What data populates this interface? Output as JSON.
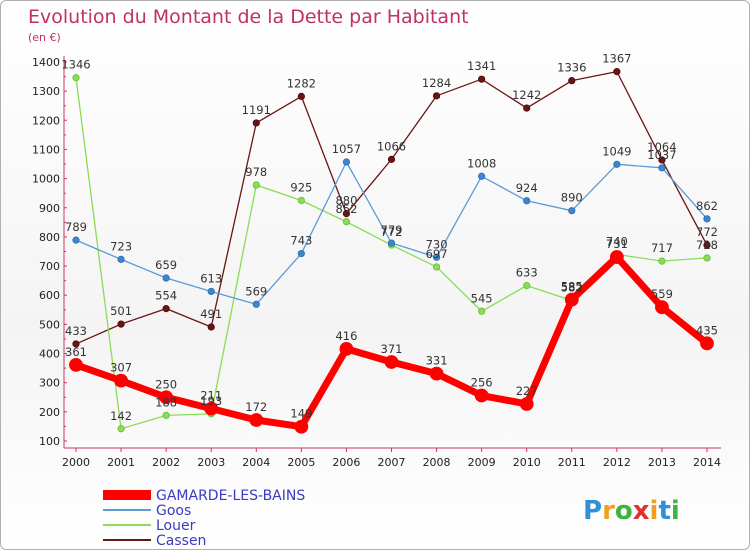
{
  "chart_data": {
    "type": "line",
    "title": "Evolution du Montant de la Dette par Habitant",
    "subtitle": "(en €)",
    "x": [
      "2000",
      "2001",
      "2002",
      "2003",
      "2004",
      "2005",
      "2006",
      "2007",
      "2008",
      "2009",
      "2010",
      "2011",
      "2012",
      "2013",
      "2014"
    ],
    "ylim": [
      100,
      1400
    ],
    "yticks": [
      100,
      200,
      300,
      400,
      500,
      600,
      700,
      800,
      900,
      1000,
      1100,
      1200,
      1300,
      1400
    ],
    "grid": false,
    "legend_position": "bottom-left",
    "series": [
      {
        "name": "GAMARDE-LES-BAINS",
        "color": "#ff0000",
        "values": [
          361,
          307,
          250,
          211,
          172,
          149,
          416,
          371,
          331,
          256,
          227,
          585,
          731,
          559,
          435
        ]
      },
      {
        "name": "Goos",
        "color": "#5b9bd5",
        "values": [
          789,
          723,
          659,
          613,
          569,
          743,
          1057,
          779,
          730,
          1008,
          924,
          890,
          1049,
          1037,
          862
        ]
      },
      {
        "name": "Louer",
        "color": "#88dd55",
        "values": [
          1346,
          142,
          188,
          193,
          978,
          925,
          852,
          772,
          697,
          545,
          633,
          582,
          740,
          717,
          728
        ]
      },
      {
        "name": "Cassen",
        "color": "#6b1414",
        "values": [
          433,
          501,
          554,
          491,
          1191,
          1282,
          880,
          1066,
          1284,
          1341,
          1242,
          1336,
          1367,
          1064,
          772
        ]
      }
    ]
  },
  "logo": {
    "letters": [
      "P",
      "r",
      "o",
      "x",
      "i",
      "t",
      "i"
    ],
    "colors": [
      "#2f8fd8",
      "#f0a020",
      "#3fb33f",
      "#e03030",
      "#f0a020",
      "#2f8fd8",
      "#3fb33f"
    ]
  }
}
